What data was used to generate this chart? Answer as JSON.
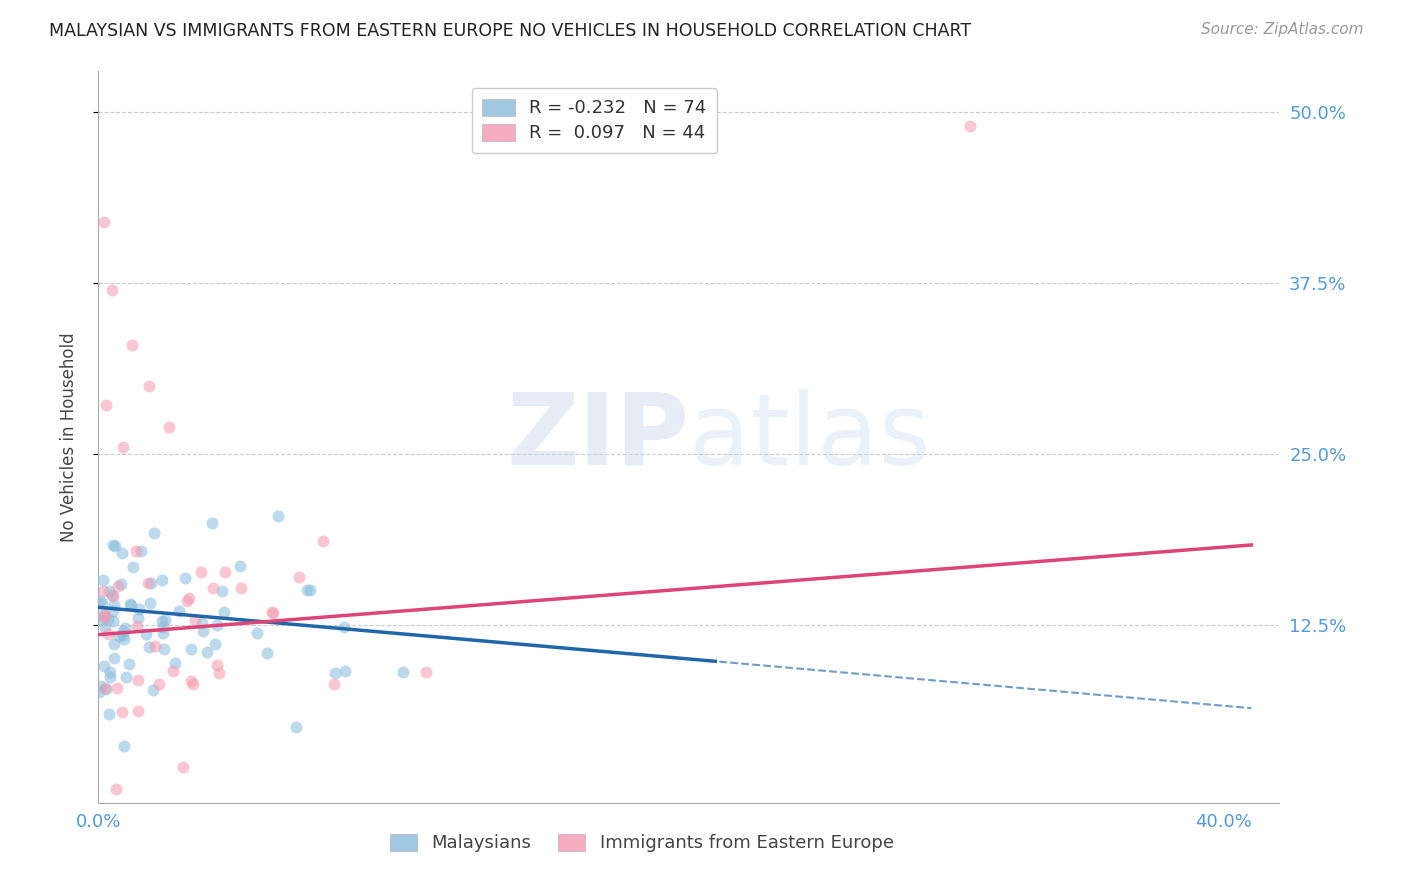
{
  "title": "MALAYSIAN VS IMMIGRANTS FROM EASTERN EUROPE NO VEHICLES IN HOUSEHOLD CORRELATION CHART",
  "source": "Source: ZipAtlas.com",
  "ylabel": "No Vehicles in Household",
  "xlim": [
    0.0,
    0.42
  ],
  "ylim": [
    -0.005,
    0.53
  ],
  "blue_color": "#88bbdd",
  "pink_color": "#f499b0",
  "blue_line_color": "#2266aa",
  "pink_line_color": "#dd4477",
  "title_color": "#222222",
  "axis_label_color": "#444444",
  "right_tick_color": "#5599dd",
  "grid_color": "#cccccc",
  "background_color": "#ffffff",
  "blue_line_intercept": 0.138,
  "blue_line_slope": -0.18,
  "blue_line_solid_end": 0.22,
  "pink_line_intercept": 0.118,
  "pink_line_slope": 0.16,
  "ytick_positions": [
    0.125,
    0.25,
    0.375,
    0.5
  ],
  "ytick_labels": [
    "12.5%",
    "25.0%",
    "37.5%",
    "50.0%"
  ]
}
